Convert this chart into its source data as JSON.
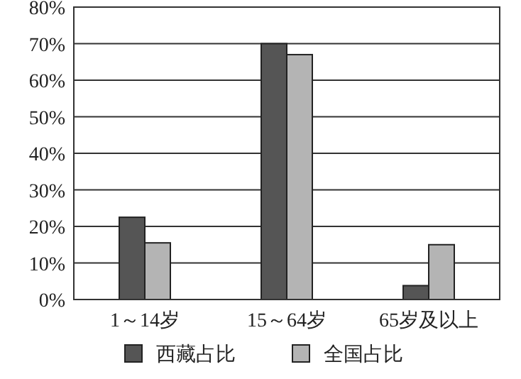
{
  "chart_data": {
    "type": "bar",
    "categories": [
      "1～14岁",
      "15～64岁",
      "65岁及以上"
    ],
    "series": [
      {
        "name": "西藏占比",
        "color": "#555555",
        "values": [
          22.5,
          70,
          3.8
        ]
      },
      {
        "name": "全国占比",
        "color": "#b4b4b4",
        "values": [
          15.5,
          67,
          15
        ]
      }
    ],
    "ylim": [
      0,
      80
    ],
    "yticks": [
      {
        "value": 0,
        "label": "0%"
      },
      {
        "value": 10,
        "label": "10%"
      },
      {
        "value": 20,
        "label": "20%"
      },
      {
        "value": 30,
        "label": "30%"
      },
      {
        "value": 40,
        "label": "40%"
      },
      {
        "value": 50,
        "label": "50%"
      },
      {
        "value": 60,
        "label": "60%"
      },
      {
        "value": 70,
        "label": "70%"
      },
      {
        "value": 80,
        "label": "80%"
      }
    ],
    "grid": "y",
    "legend": "bottom"
  }
}
